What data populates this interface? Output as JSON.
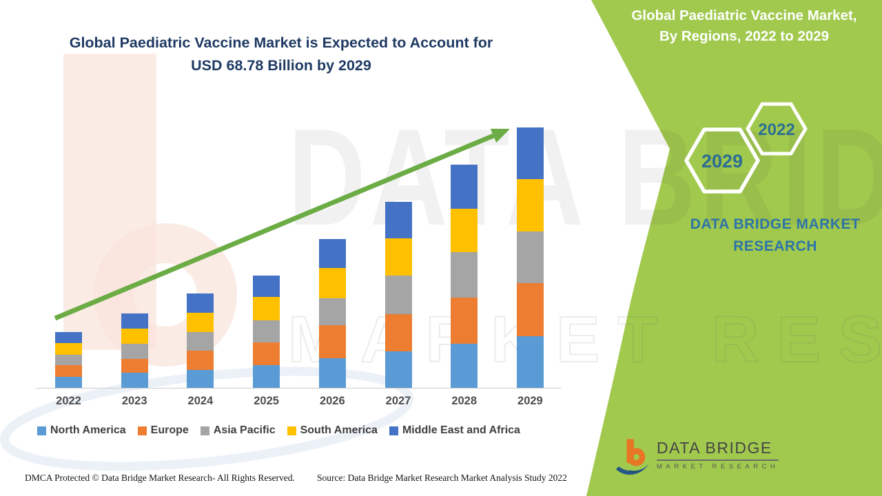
{
  "header": {
    "main_title_line1": "Global Paediatric Vaccine Market is Expected to Account for",
    "main_title_line2": "USD 68.78 Billion by 2029"
  },
  "side_panel": {
    "background_color": "#A1C94E",
    "title_line1": "Global Paediatric Vaccine Market,",
    "title_line2": "By Regions, 2022 to 2029",
    "hexagons": [
      {
        "year": "2022"
      },
      {
        "year": "2029"
      }
    ],
    "brand_line1": "DATA BRIDGE MARKET",
    "brand_line2": "RESEARCH"
  },
  "watermark": {
    "text_line1": "DATA BRIDGE",
    "text_line2": "MARKET RESEARCH"
  },
  "logo": {
    "name": "DATA BRIDGE",
    "subtitle": "MARKET RESEARCH"
  },
  "footer": {
    "dmca": "DMCA Protected © Data Bridge Market Research- All Rights Reserved.",
    "source": "Source: Data Bridge Market Research Market Analysis Study 2022"
  },
  "chart_data": {
    "type": "bar",
    "stacked": true,
    "title": "Global Paediatric Vaccine Market, By Regions, 2022 to 2029",
    "value_unit": "USD Billion (estimated from bar heights)",
    "total_2029_label": "USD 68.78 Billion",
    "categories": [
      "2022",
      "2023",
      "2024",
      "2025",
      "2026",
      "2027",
      "2028",
      "2029"
    ],
    "series": [
      {
        "name": "North America",
        "color": "#5B9BD5",
        "values": [
          2.9,
          4.0,
          4.8,
          6.1,
          7.9,
          9.7,
          11.7,
          13.6
        ]
      },
      {
        "name": "Europe",
        "color": "#ED7D31",
        "values": [
          3.1,
          3.7,
          5.0,
          5.9,
          8.6,
          9.7,
          12.1,
          14.1
        ]
      },
      {
        "name": "Asia Pacific",
        "color": "#A5A5A5",
        "values": [
          2.8,
          4.0,
          5.0,
          5.9,
          7.2,
          10.3,
          12.1,
          13.6
        ]
      },
      {
        "name": "South America",
        "color": "#FFC000",
        "values": [
          3.1,
          4.0,
          5.1,
          6.1,
          7.9,
          9.7,
          11.4,
          13.8
        ]
      },
      {
        "name": "Middle East and Africa",
        "color": "#4472C4",
        "values": [
          2.8,
          3.9,
          5.0,
          5.7,
          7.7,
          9.7,
          11.6,
          13.6
        ]
      }
    ],
    "estimated_totals": [
      14.7,
      19.6,
      24.9,
      29.7,
      39.3,
      49.1,
      58.9,
      68.7
    ],
    "legend_position": "bottom",
    "grid": false,
    "trend_arrow_color": "#6CAC45"
  }
}
